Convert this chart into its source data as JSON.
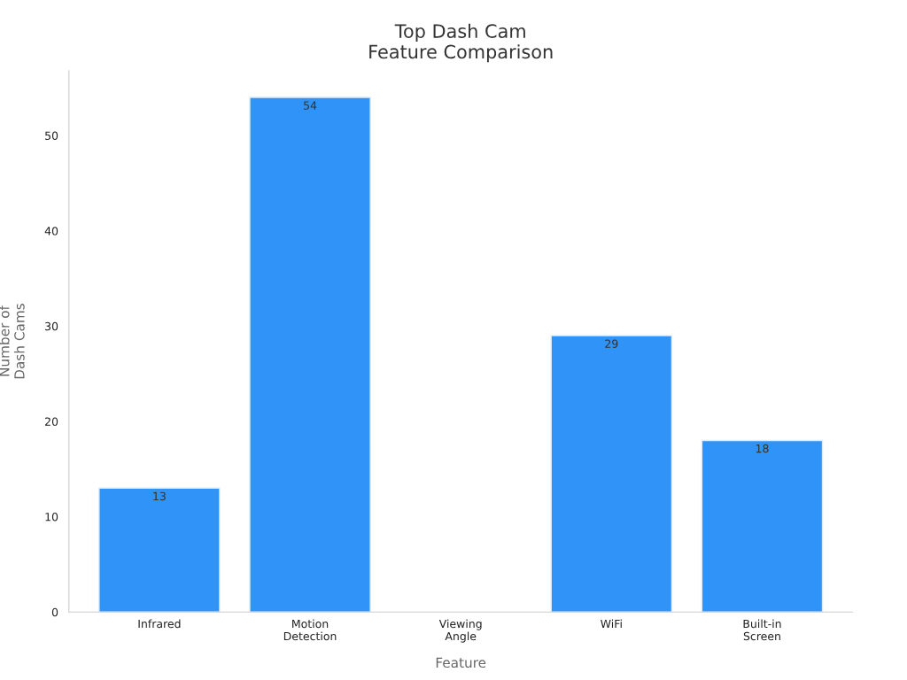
{
  "chart_data": {
    "type": "bar",
    "title": "Top Dash Cam\nFeature Comparison",
    "xlabel": "Feature",
    "ylabel": "Number of\nDash Cams",
    "categories": [
      "Infrared",
      "Motion\nDetection",
      "Viewing\nAngle",
      "WiFi",
      "Built-in\nScreen"
    ],
    "values": [
      13,
      54,
      0,
      29,
      18
    ],
    "value_labels": [
      "13",
      "54",
      null,
      "29",
      "18"
    ],
    "color": "#2f93f7",
    "ylim": [
      0,
      56.8
    ],
    "yticks": [
      0,
      10,
      20,
      30,
      40,
      50
    ],
    "grid": false
  }
}
